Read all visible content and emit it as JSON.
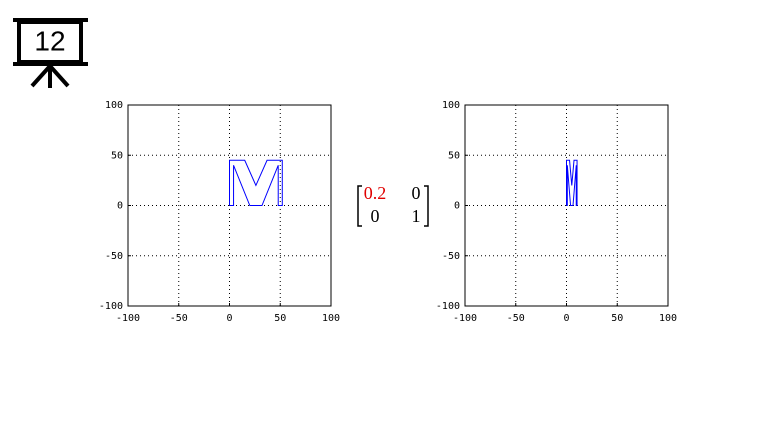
{
  "slide_number": "12",
  "matrix": {
    "rows": [
      [
        0.2,
        0
      ],
      [
        0,
        1
      ]
    ],
    "highlight_color": "#e00000",
    "color": "#000000"
  },
  "chart_data": [
    {
      "type": "line",
      "color": "#0000ff",
      "x": [
        0,
        0,
        15,
        26,
        37,
        52,
        52,
        48,
        48,
        32,
        20,
        4,
        4,
        0
      ],
      "values": [
        0,
        45,
        45,
        20,
        45,
        45,
        0,
        0,
        40,
        0,
        0,
        40,
        0,
        0
      ],
      "xlim": [
        -100,
        100
      ],
      "ylim": [
        -100,
        100
      ],
      "xticks": [
        -100,
        -50,
        0,
        50,
        100
      ],
      "yticks": [
        -100,
        -50,
        0,
        50,
        100
      ],
      "grid": true
    },
    {
      "type": "line",
      "color": "#0000ff",
      "x": [
        0,
        0,
        3,
        5.2,
        7.4,
        10.4,
        10.4,
        9.6,
        9.6,
        6.4,
        4,
        0.8,
        0.8,
        0
      ],
      "values": [
        0,
        45,
        45,
        20,
        45,
        45,
        0,
        0,
        40,
        0,
        0,
        40,
        0,
        0
      ],
      "xlim": [
        -100,
        100
      ],
      "ylim": [
        -100,
        100
      ],
      "xticks": [
        -100,
        -50,
        0,
        50,
        100
      ],
      "yticks": [
        -100,
        -50,
        0,
        50,
        100
      ],
      "grid": true
    }
  ]
}
